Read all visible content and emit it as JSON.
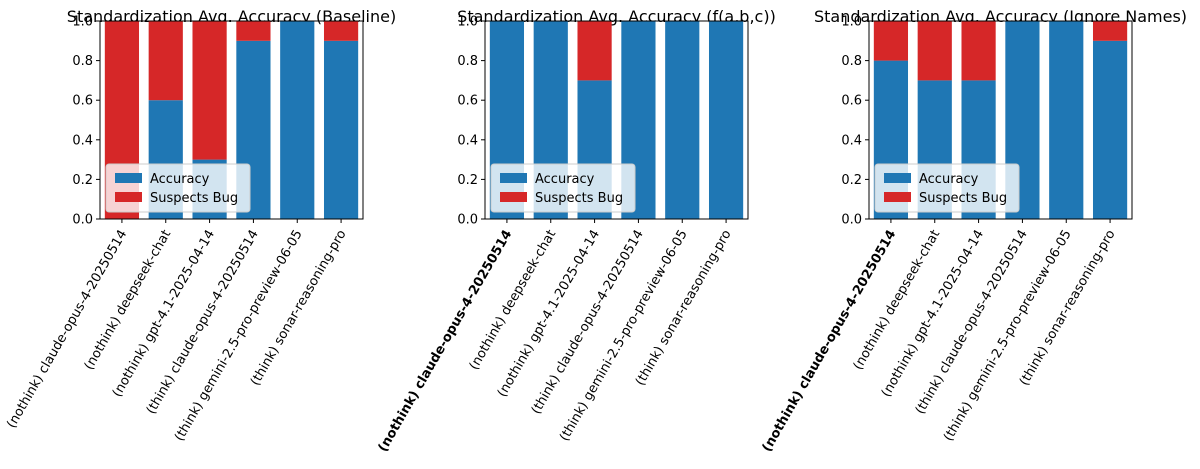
{
  "chart_data": [
    {
      "type": "bar",
      "stacked": true,
      "title": "Standardization Avg. Accuracy (Baseline)",
      "categories": [
        "(nothink) claude-opus-4-20250514",
        "(nothink) deepseek-chat",
        "(nothink) gpt-4.1-2025-04-14",
        "(think) claude-opus-4-20250514",
        "(think) gemini-2.5-pro-preview-06-05",
        "(think) sonar-reasoning-pro"
      ],
      "bold_categories": [],
      "series": [
        {
          "name": "Accuracy",
          "color": "#1f77b4",
          "values": [
            0.0,
            0.6,
            0.3,
            0.9,
            1.0,
            0.9
          ]
        },
        {
          "name": "Suspects Bug",
          "color": "#d62728",
          "values": [
            1.0,
            0.4,
            0.7,
            0.1,
            0.0,
            0.1
          ]
        }
      ],
      "ylim": [
        0,
        1.0
      ],
      "yticks": [
        "0.0",
        "0.2",
        "0.4",
        "0.6",
        "0.8",
        "1.0"
      ],
      "legend": "lower-left"
    },
    {
      "type": "bar",
      "stacked": true,
      "title": "Standardization Avg. Accuracy (f(a,b,c))",
      "categories": [
        "(nothink) claude-opus-4-20250514",
        "(nothink) deepseek-chat",
        "(nothink) gpt-4.1-2025-04-14",
        "(think) claude-opus-4-20250514",
        "(think) gemini-2.5-pro-preview-06-05",
        "(think) sonar-reasoning-pro"
      ],
      "bold_categories": [
        0
      ],
      "series": [
        {
          "name": "Accuracy",
          "color": "#1f77b4",
          "values": [
            1.0,
            1.0,
            0.7,
            1.0,
            1.0,
            1.0
          ]
        },
        {
          "name": "Suspects Bug",
          "color": "#d62728",
          "values": [
            0.0,
            0.0,
            0.3,
            0.0,
            0.0,
            0.0
          ]
        }
      ],
      "ylim": [
        0,
        1.0
      ],
      "yticks": [
        "0.0",
        "0.2",
        "0.4",
        "0.6",
        "0.8",
        "1.0"
      ],
      "legend": "lower-left"
    },
    {
      "type": "bar",
      "stacked": true,
      "title": "Standardization Avg. Accuracy (Ignore Names)",
      "categories": [
        "(nothink) claude-opus-4-20250514",
        "(nothink) deepseek-chat",
        "(nothink) gpt-4.1-2025-04-14",
        "(think) claude-opus-4-20250514",
        "(think) gemini-2.5-pro-preview-06-05",
        "(think) sonar-reasoning-pro"
      ],
      "bold_categories": [
        0
      ],
      "series": [
        {
          "name": "Accuracy",
          "color": "#1f77b4",
          "values": [
            0.8,
            0.7,
            0.7,
            1.0,
            1.0,
            0.9
          ]
        },
        {
          "name": "Suspects Bug",
          "color": "#d62728",
          "values": [
            0.2,
            0.3,
            0.3,
            0.0,
            0.0,
            0.1
          ]
        }
      ],
      "ylim": [
        0,
        1.0
      ],
      "yticks": [
        "0.0",
        "0.2",
        "0.4",
        "0.6",
        "0.8",
        "1.0"
      ],
      "legend": "lower-left"
    }
  ]
}
